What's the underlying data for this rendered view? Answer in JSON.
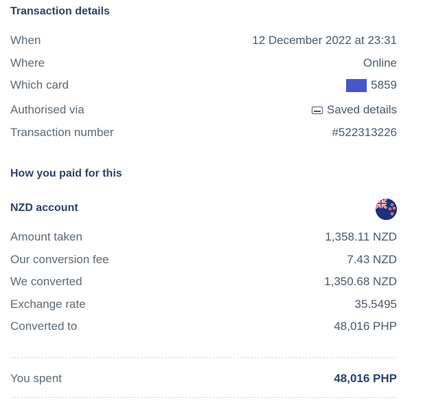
{
  "transaction": {
    "title": "Transaction details",
    "rows": [
      {
        "label": "When",
        "value": "12 December 2022 at 23:31"
      },
      {
        "label": "Where",
        "value": "Online"
      },
      {
        "label": "Which card",
        "value": "5859"
      },
      {
        "label": "Authorised via",
        "value": "Saved details"
      },
      {
        "label": "Transaction number",
        "value": "#522313226"
      }
    ]
  },
  "payment": {
    "title": "How you paid for this",
    "account_title": "NZD account",
    "rows": [
      {
        "label": "Amount taken",
        "value": "1,358.11 NZD"
      },
      {
        "label": "Our conversion fee",
        "value": "7.43 NZD"
      },
      {
        "label": "We converted",
        "value": "1,350.68 NZD"
      },
      {
        "label": "Exchange rate",
        "value": "35.5495"
      },
      {
        "label": "Converted to",
        "value": "48,016 PHP"
      }
    ]
  },
  "total": {
    "label": "You spent",
    "value": "48,016 PHP"
  },
  "icons": {
    "card": "card-chip-icon",
    "device": "saved-details-icon",
    "flag": "new-zealand-flag-icon"
  },
  "colors": {
    "title": "#2e4369",
    "text": "#5d6a74",
    "card": "#4856c8"
  }
}
